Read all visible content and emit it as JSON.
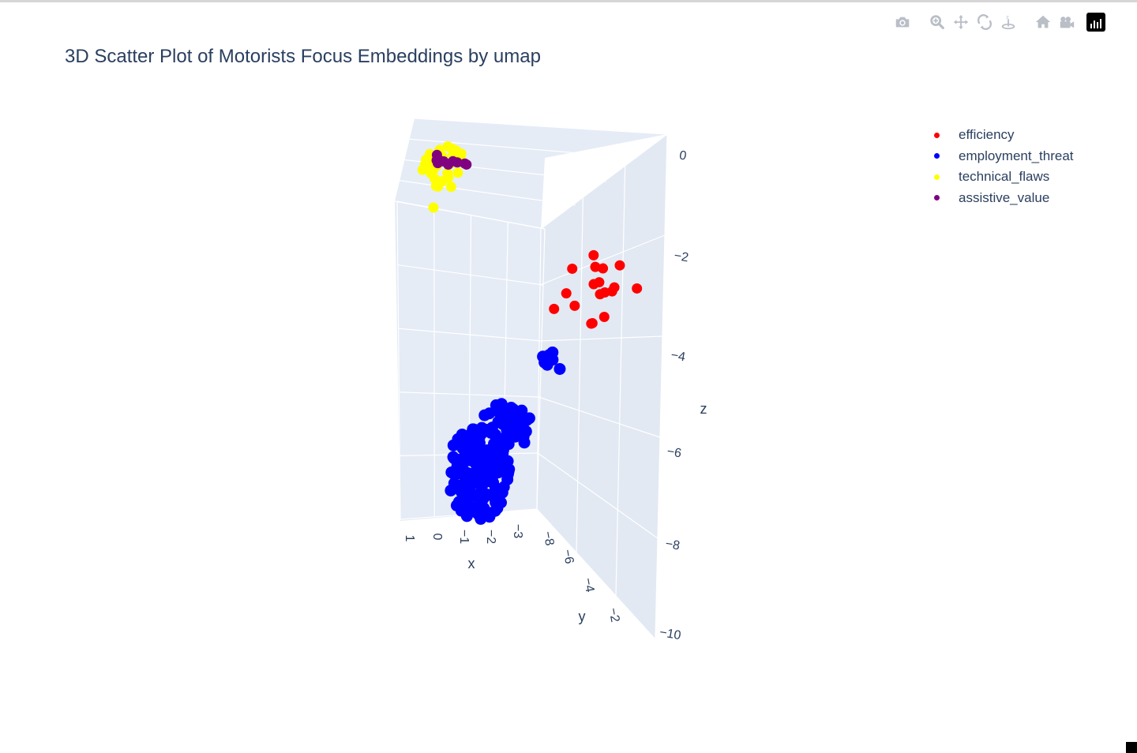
{
  "chart_data": {
    "type": "scatter",
    "title": "3D Scatter Plot of Motorists Focus Embeddings by umap",
    "axes": {
      "x": {
        "label": "x",
        "ticks": [
          "1",
          "0",
          "−1",
          "−2",
          "−3"
        ]
      },
      "y": {
        "label": "y",
        "ticks": [
          "−8",
          "−6",
          "−4",
          "−2"
        ]
      },
      "z": {
        "label": "z",
        "ticks": [
          "0",
          "−2",
          "−4",
          "−6",
          "−8",
          "−10"
        ]
      }
    },
    "series": [
      {
        "name": "efficiency",
        "color": "#ff0000"
      },
      {
        "name": "employment_threat",
        "color": "#0000ff"
      },
      {
        "name": "technical_flaws",
        "color": "#ffff00"
      },
      {
        "name": "assistive_value",
        "color": "#800080"
      }
    ],
    "legend_position": "top-right"
  },
  "modebar": {
    "icons": [
      "camera-icon",
      "zoom-icon",
      "pan-icon",
      "orbit-rotation-icon",
      "turntable-rotation-icon",
      "home-icon",
      "camera-view-icon",
      "plotly-logo-icon"
    ]
  }
}
